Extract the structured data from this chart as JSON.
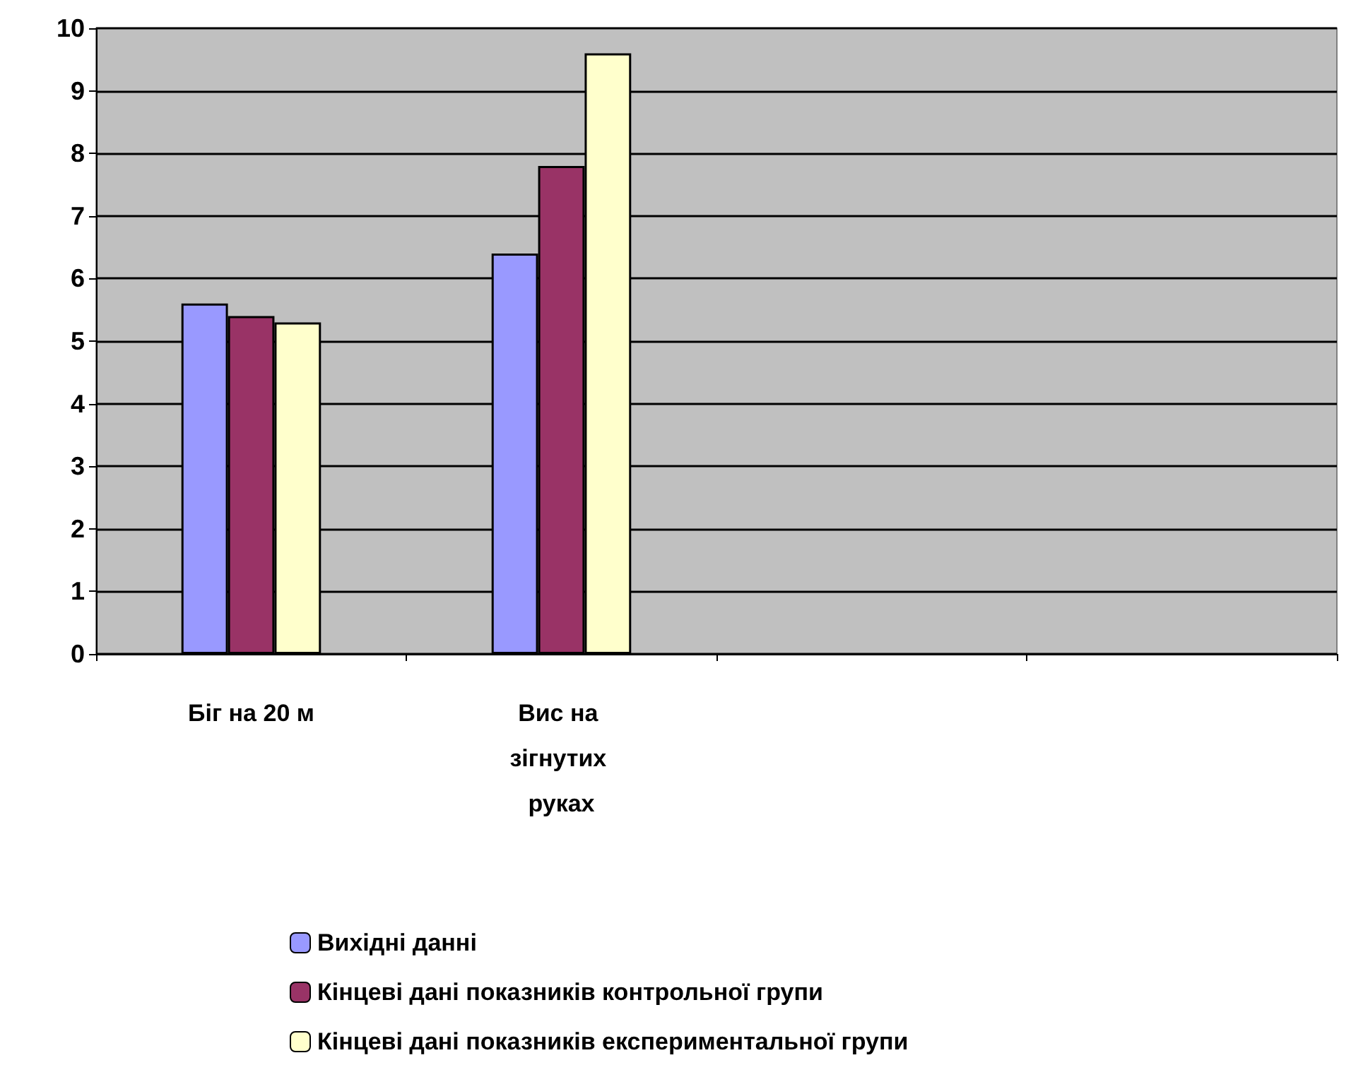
{
  "chart_data": {
    "type": "bar",
    "categories": [
      "Біг на 20 м",
      "Вис на зігнутих руках",
      null,
      null
    ],
    "series": [
      {
        "name": "Вихідні данні",
        "color": "#9999ff",
        "values": [
          5.6,
          6.4,
          null,
          null
        ]
      },
      {
        "name": "Кінцеві дані показників контрольної групи",
        "color": "#993366",
        "values": [
          5.4,
          7.8,
          null,
          null
        ]
      },
      {
        "name": "Кінцеві дані показників експериментальної групи",
        "color": "#ffffcc",
        "values": [
          5.3,
          9.6,
          null,
          null
        ]
      }
    ],
    "ylim": [
      0,
      10
    ],
    "yticks": [
      0,
      1,
      2,
      3,
      4,
      5,
      6,
      7,
      8,
      9,
      10
    ],
    "grid": "y",
    "legend": "bottom"
  }
}
